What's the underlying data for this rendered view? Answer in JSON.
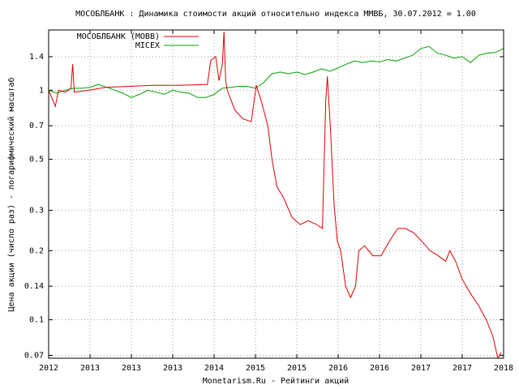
{
  "chart_data": {
    "type": "line",
    "title": "МОСОБЛБАНК : Динамика стоимости акций относительно индекса ММВБ, 30.07.2012 = 1.00",
    "x_label": "Monetarism.Ru - Рейтинги акций",
    "y_label": "Цена акции (число раз) - логарифмический масштаб",
    "log_y": true,
    "grid": true,
    "legend": "top-left",
    "xlim": [
      2012.5,
      2018.0
    ],
    "xticks": [
      {
        "value": 2012.5,
        "label": "2012"
      },
      {
        "value": 2013.0,
        "label": "2013"
      },
      {
        "value": 2013.5,
        "label": "2013"
      },
      {
        "value": 2014.0,
        "label": "2013"
      },
      {
        "value": 2014.5,
        "label": "2014"
      },
      {
        "value": 2015.0,
        "label": "2015"
      },
      {
        "value": 2015.5,
        "label": "2015"
      },
      {
        "value": 2016.0,
        "label": "2016"
      },
      {
        "value": 2016.5,
        "label": "2016"
      },
      {
        "value": 2017.0,
        "label": "2017"
      },
      {
        "value": 2017.5,
        "label": "2017"
      },
      {
        "value": 2018.0,
        "label": "2018"
      }
    ],
    "ylim": [
      0.068,
      1.83
    ],
    "yticks": [
      0.07,
      0.1,
      0.14,
      0.2,
      0.3,
      0.5,
      0.7,
      1,
      1.4
    ],
    "series": [
      {
        "name": "МОСОБЛБАНК (MOBB)",
        "color": "#e00000",
        "x": [
          2012.5,
          2012.58,
          2012.62,
          2012.7,
          2012.77,
          2012.79,
          2012.81,
          2012.99,
          2013.19,
          2013.48,
          2013.77,
          2014.07,
          2014.42,
          2014.46,
          2014.52,
          2014.56,
          2014.6,
          2014.62,
          2014.64,
          2014.66,
          2014.75,
          2014.85,
          2014.95,
          2015.01,
          2015.07,
          2015.15,
          2015.2,
          2015.26,
          2015.34,
          2015.44,
          2015.54,
          2015.64,
          2015.74,
          2015.81,
          2015.85,
          2015.87,
          2015.91,
          2015.95,
          2015.99,
          2016.03,
          2016.09,
          2016.15,
          2016.21,
          2016.25,
          2016.32,
          2016.42,
          2016.52,
          2016.62,
          2016.72,
          2016.81,
          2016.91,
          2017.01,
          2017.11,
          2017.21,
          2017.3,
          2017.35,
          2017.42,
          2017.5,
          2017.6,
          2017.7,
          2017.79,
          2017.87,
          2017.93,
          2017.97
        ],
        "values": [
          1.0,
          0.85,
          1.0,
          0.98,
          1.02,
          1.3,
          0.98,
          1.0,
          1.03,
          1.04,
          1.05,
          1.05,
          1.06,
          1.35,
          1.4,
          1.1,
          1.3,
          1.8,
          1.1,
          1.0,
          0.82,
          0.75,
          0.73,
          1.05,
          0.9,
          0.7,
          0.5,
          0.38,
          0.34,
          0.28,
          0.26,
          0.27,
          0.26,
          0.25,
          0.9,
          1.15,
          0.65,
          0.32,
          0.22,
          0.2,
          0.14,
          0.125,
          0.14,
          0.2,
          0.21,
          0.19,
          0.19,
          0.22,
          0.25,
          0.25,
          0.24,
          0.22,
          0.2,
          0.19,
          0.18,
          0.2,
          0.18,
          0.15,
          0.13,
          0.115,
          0.1,
          0.085,
          0.068,
          0.072
        ]
      },
      {
        "name": "MICEX",
        "color": "#00a000",
        "x": [
          2012.5,
          2012.6,
          2012.7,
          2012.8,
          2012.9,
          2013.0,
          2013.1,
          2013.2,
          2013.3,
          2013.4,
          2013.5,
          2013.6,
          2013.7,
          2013.8,
          2013.9,
          2014.0,
          2014.1,
          2014.2,
          2014.3,
          2014.4,
          2014.5,
          2014.6,
          2014.7,
          2014.8,
          2014.9,
          2015.0,
          2015.1,
          2015.2,
          2015.3,
          2015.4,
          2015.5,
          2015.6,
          2015.7,
          2015.8,
          2015.9,
          2016.0,
          2016.1,
          2016.2,
          2016.3,
          2016.4,
          2016.5,
          2016.6,
          2016.7,
          2016.8,
          2016.9,
          2017.0,
          2017.1,
          2017.2,
          2017.3,
          2017.4,
          2017.5,
          2017.6,
          2017.7,
          2017.8,
          2017.9,
          2018.0
        ],
        "values": [
          1.0,
          0.97,
          1.0,
          1.02,
          1.02,
          1.03,
          1.06,
          1.03,
          1.0,
          0.97,
          0.93,
          0.96,
          1.0,
          0.98,
          0.96,
          1.0,
          0.98,
          0.97,
          0.93,
          0.93,
          0.96,
          1.02,
          1.03,
          1.04,
          1.04,
          1.02,
          1.08,
          1.18,
          1.2,
          1.18,
          1.2,
          1.17,
          1.2,
          1.24,
          1.21,
          1.25,
          1.3,
          1.34,
          1.32,
          1.34,
          1.33,
          1.36,
          1.34,
          1.38,
          1.42,
          1.52,
          1.55,
          1.45,
          1.42,
          1.38,
          1.4,
          1.32,
          1.42,
          1.45,
          1.46,
          1.52
        ]
      }
    ]
  }
}
